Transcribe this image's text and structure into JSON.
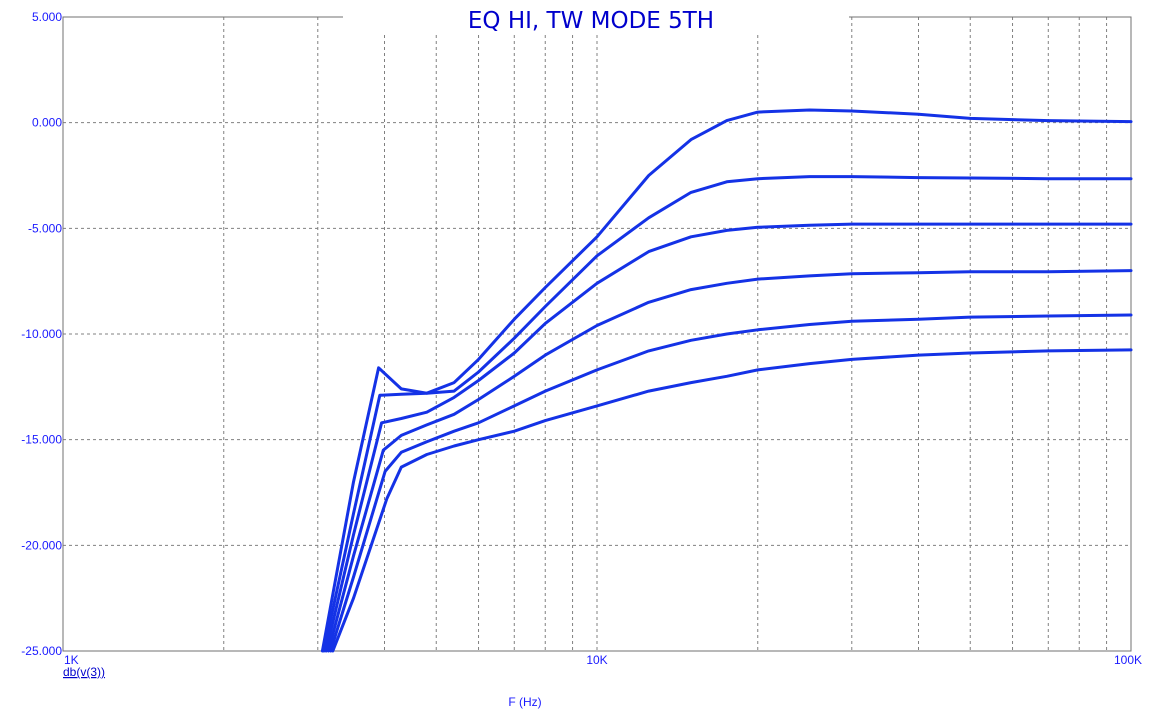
{
  "chart_data": {
    "type": "line",
    "title": "EQ HI, TW MODE 5TH",
    "xlabel": "F (Hz)",
    "ylabel": "",
    "trace_label": "db(v(3))",
    "x_scale": "log",
    "xlim": [
      1000,
      100000
    ],
    "ylim": [
      -25,
      5
    ],
    "grid": true,
    "x_tick_labels": [
      "1K",
      "10K",
      "100K"
    ],
    "y_tick_labels": [
      "5.000",
      "0.000",
      "-5.000",
      "-10.000",
      "-15.000",
      "-20.000",
      "-25.000"
    ],
    "colors": {
      "trace": "#1432e6",
      "grid": "#808080",
      "text": "#1a1aff"
    },
    "series": [
      {
        "x": [
          3060,
          3500,
          3900,
          4300,
          4800,
          5400,
          6000,
          7000,
          8000,
          10000,
          12500,
          15000,
          17500,
          20000,
          25000,
          30000,
          40000,
          50000,
          70000,
          100000
        ],
        "y": [
          -25,
          -17,
          -11.6,
          -12.6,
          -12.8,
          -12.3,
          -11.2,
          -9.3,
          -7.8,
          -5.4,
          -2.5,
          -0.8,
          0.1,
          0.5,
          0.6,
          0.55,
          0.4,
          0.2,
          0.1,
          0.05
        ]
      },
      {
        "x": [
          3080,
          3500,
          3920,
          4300,
          4800,
          5400,
          6000,
          7000,
          8000,
          10000,
          12500,
          15000,
          17500,
          20000,
          25000,
          30000,
          40000,
          50000,
          70000,
          100000
        ],
        "y": [
          -25,
          -18.5,
          -12.9,
          -12.85,
          -12.8,
          -12.7,
          -11.8,
          -10.2,
          -8.7,
          -6.3,
          -4.5,
          -3.3,
          -2.8,
          -2.65,
          -2.55,
          -2.55,
          -2.6,
          -2.62,
          -2.65,
          -2.65
        ]
      },
      {
        "x": [
          3110,
          3500,
          3950,
          4300,
          4800,
          5400,
          6000,
          7000,
          8000,
          10000,
          12500,
          15000,
          17500,
          20000,
          25000,
          30000,
          40000,
          50000,
          70000,
          100000
        ],
        "y": [
          -25,
          -19.5,
          -14.2,
          -14.0,
          -13.7,
          -13.0,
          -12.2,
          -10.9,
          -9.5,
          -7.6,
          -6.1,
          -5.4,
          -5.1,
          -4.95,
          -4.85,
          -4.8,
          -4.8,
          -4.8,
          -4.8,
          -4.8
        ]
      },
      {
        "x": [
          3140,
          3500,
          3980,
          4300,
          4800,
          5400,
          6000,
          7000,
          8000,
          10000,
          12500,
          15000,
          17500,
          20000,
          25000,
          30000,
          40000,
          50000,
          70000,
          100000
        ],
        "y": [
          -25,
          -20.5,
          -15.5,
          -14.8,
          -14.3,
          -13.8,
          -13.1,
          -12.0,
          -11.0,
          -9.6,
          -8.5,
          -7.9,
          -7.6,
          -7.4,
          -7.25,
          -7.15,
          -7.1,
          -7.05,
          -7.05,
          -7.0
        ]
      },
      {
        "x": [
          3170,
          3500,
          4010,
          4300,
          4800,
          5400,
          6000,
          7000,
          8000,
          10000,
          12500,
          15000,
          17500,
          20000,
          25000,
          30000,
          40000,
          50000,
          70000,
          100000
        ],
        "y": [
          -25,
          -21.5,
          -16.5,
          -15.6,
          -15.1,
          -14.6,
          -14.2,
          -13.4,
          -12.7,
          -11.7,
          -10.8,
          -10.3,
          -10.0,
          -9.8,
          -9.55,
          -9.4,
          -9.3,
          -9.2,
          -9.15,
          -9.1
        ]
      },
      {
        "x": [
          3200,
          3500,
          4040,
          4300,
          4800,
          5400,
          6000,
          7000,
          8000,
          10000,
          12500,
          15000,
          17500,
          20000,
          25000,
          30000,
          40000,
          50000,
          70000,
          100000
        ],
        "y": [
          -25,
          -22.5,
          -17.8,
          -16.3,
          -15.7,
          -15.3,
          -15.0,
          -14.6,
          -14.1,
          -13.4,
          -12.7,
          -12.3,
          -12.0,
          -11.7,
          -11.4,
          -11.2,
          -11.0,
          -10.9,
          -10.8,
          -10.75
        ]
      }
    ]
  }
}
